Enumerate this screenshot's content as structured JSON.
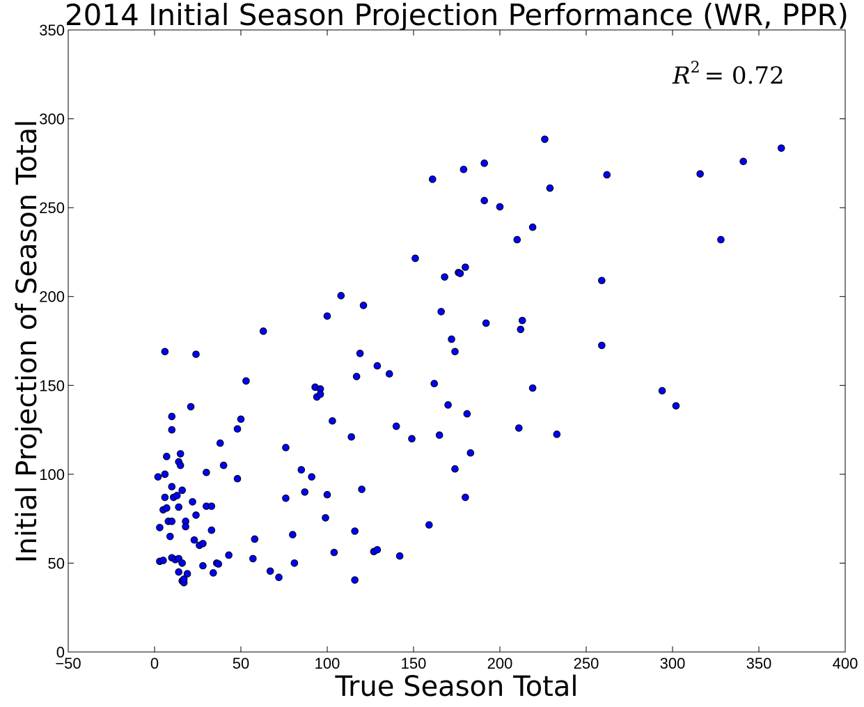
{
  "chart_data": {
    "type": "scatter",
    "title": "2014 Initial Season Projection Performance (WR, PPR)",
    "xlabel": "True Season Total",
    "ylabel": "Initial Projection of Season Total",
    "xlim": [
      -50,
      400
    ],
    "ylim": [
      0,
      350
    ],
    "x_ticks": [
      -50,
      0,
      50,
      100,
      150,
      200,
      250,
      300,
      350,
      400
    ],
    "y_ticks": [
      0,
      50,
      100,
      150,
      200,
      250,
      300,
      350
    ],
    "x_tick_labels": [
      "−50",
      "0",
      "50",
      "100",
      "150",
      "200",
      "250",
      "300",
      "350",
      "400"
    ],
    "y_tick_labels": [
      "0",
      "50",
      "100",
      "150",
      "200",
      "250",
      "300",
      "350"
    ],
    "grid": false,
    "legend": "none",
    "annotation": {
      "base": "R",
      "exponent": "2",
      "rest": "= 0.72"
    },
    "marker_color": "#0000ff",
    "marker_edge_color": "#000000",
    "points": [
      [
        2,
        98.5
      ],
      [
        3,
        70
      ],
      [
        3,
        51
      ],
      [
        5,
        80
      ],
      [
        5,
        51.5
      ],
      [
        6,
        169
      ],
      [
        6,
        87
      ],
      [
        6,
        100
      ],
      [
        7,
        81
      ],
      [
        7,
        110
      ],
      [
        8,
        73.5
      ],
      [
        9,
        65
      ],
      [
        10,
        125
      ],
      [
        10,
        132.5
      ],
      [
        10,
        73.5
      ],
      [
        10,
        53
      ],
      [
        10,
        93
      ],
      [
        11,
        87
      ],
      [
        12,
        52
      ],
      [
        13,
        88
      ],
      [
        14,
        45
      ],
      [
        14,
        81.5
      ],
      [
        14,
        52.5
      ],
      [
        14,
        107
      ],
      [
        15,
        111.5
      ],
      [
        15,
        105
      ],
      [
        16,
        50
      ],
      [
        16,
        40
      ],
      [
        16,
        91
      ],
      [
        17,
        39
      ],
      [
        17,
        41
      ],
      [
        18,
        73.5
      ],
      [
        18,
        70.5
      ],
      [
        19,
        44
      ],
      [
        21,
        138
      ],
      [
        22,
        84.5
      ],
      [
        23,
        63
      ],
      [
        24,
        167.5
      ],
      [
        24,
        77
      ],
      [
        26,
        60
      ],
      [
        28,
        48.5
      ],
      [
        28,
        61
      ],
      [
        30,
        101
      ],
      [
        30,
        82
      ],
      [
        33,
        82
      ],
      [
        33,
        68.5
      ],
      [
        34,
        44.5
      ],
      [
        36,
        50
      ],
      [
        37,
        49.5
      ],
      [
        38,
        117.5
      ],
      [
        40,
        105
      ],
      [
        43,
        54.5
      ],
      [
        48,
        125.5
      ],
      [
        48,
        97.5
      ],
      [
        50,
        131
      ],
      [
        53,
        152.5
      ],
      [
        57,
        52.5
      ],
      [
        58,
        63.5
      ],
      [
        63,
        180.5
      ],
      [
        67,
        45.5
      ],
      [
        72,
        42
      ],
      [
        76,
        86.5
      ],
      [
        76,
        115
      ],
      [
        80,
        66
      ],
      [
        81,
        50
      ],
      [
        85,
        102.5
      ],
      [
        87,
        90
      ],
      [
        91,
        98.5
      ],
      [
        93,
        149
      ],
      [
        94,
        143.5
      ],
      [
        96,
        148
      ],
      [
        96,
        145
      ],
      [
        99,
        75.5
      ],
      [
        100,
        189
      ],
      [
        100,
        88.5
      ],
      [
        103,
        130
      ],
      [
        104,
        56
      ],
      [
        108,
        200.5
      ],
      [
        114,
        121
      ],
      [
        116,
        68
      ],
      [
        116,
        40.5
      ],
      [
        117,
        155
      ],
      [
        119,
        168
      ],
      [
        120,
        91.5
      ],
      [
        121,
        195
      ],
      [
        127,
        56.5
      ],
      [
        129,
        161
      ],
      [
        129,
        57.5
      ],
      [
        136,
        156.5
      ],
      [
        140,
        127
      ],
      [
        142,
        54
      ],
      [
        149,
        120
      ],
      [
        151,
        221.5
      ],
      [
        159,
        71.5
      ],
      [
        161,
        266
      ],
      [
        162,
        151
      ],
      [
        165,
        122
      ],
      [
        166,
        191.5
      ],
      [
        168,
        211
      ],
      [
        170,
        139
      ],
      [
        172,
        176
      ],
      [
        174,
        169
      ],
      [
        174,
        103
      ],
      [
        176,
        213.5
      ],
      [
        177,
        213
      ],
      [
        179,
        271.5
      ],
      [
        180,
        87
      ],
      [
        180,
        216.5
      ],
      [
        181,
        134
      ],
      [
        183,
        112
      ],
      [
        191,
        254
      ],
      [
        191,
        275
      ],
      [
        192,
        185
      ],
      [
        200,
        250.5
      ],
      [
        210,
        232
      ],
      [
        211,
        126
      ],
      [
        212,
        181.5
      ],
      [
        213,
        186.5
      ],
      [
        219,
        239
      ],
      [
        219,
        148.5
      ],
      [
        226,
        288.5
      ],
      [
        229,
        261
      ],
      [
        233,
        122.5
      ],
      [
        259,
        209
      ],
      [
        259,
        172.5
      ],
      [
        262,
        268.5
      ],
      [
        294,
        147
      ],
      [
        302,
        138.5
      ],
      [
        316,
        269
      ],
      [
        328,
        232
      ],
      [
        341,
        276
      ],
      [
        363,
        283.5
      ]
    ]
  }
}
